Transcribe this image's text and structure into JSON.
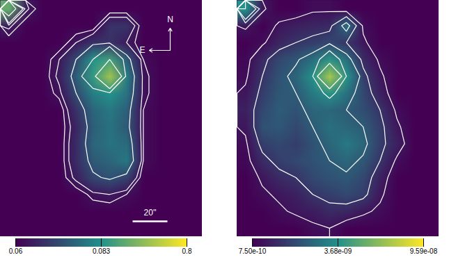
{
  "chart_data": [
    {
      "type": "heatmap",
      "tick_labels": false,
      "cells": [
        [
          0.3,
          0.065,
          0.06,
          0.06,
          0.06,
          0.06,
          0.06,
          0.06,
          0.06,
          0.06,
          0.06,
          0.06
        ],
        [
          0.065,
          0.06,
          0.06,
          0.06,
          0.06,
          0.06,
          0.068,
          0.068,
          0.06,
          0.06,
          0.06,
          0.06
        ],
        [
          0.06,
          0.06,
          0.06,
          0.06,
          0.064,
          0.068,
          0.068,
          0.064,
          0.06,
          0.06,
          0.06,
          0.06
        ],
        [
          0.06,
          0.06,
          0.06,
          0.064,
          0.072,
          0.1,
          0.2,
          0.075,
          0.062,
          0.06,
          0.06,
          0.06
        ],
        [
          0.06,
          0.06,
          0.06,
          0.065,
          0.075,
          0.15,
          0.5,
          0.08,
          0.063,
          0.06,
          0.06,
          0.06
        ],
        [
          0.06,
          0.06,
          0.06,
          0.063,
          0.072,
          0.08,
          0.09,
          0.078,
          0.063,
          0.06,
          0.06,
          0.06
        ],
        [
          0.06,
          0.06,
          0.06,
          0.06,
          0.068,
          0.076,
          0.079,
          0.075,
          0.062,
          0.06,
          0.06,
          0.06
        ],
        [
          0.06,
          0.06,
          0.06,
          0.06,
          0.066,
          0.075,
          0.078,
          0.074,
          0.062,
          0.06,
          0.06,
          0.06
        ],
        [
          0.06,
          0.06,
          0.06,
          0.06,
          0.067,
          0.076,
          0.078,
          0.077,
          0.062,
          0.06,
          0.06,
          0.06
        ],
        [
          0.06,
          0.06,
          0.06,
          0.06,
          0.067,
          0.074,
          0.076,
          0.079,
          0.062,
          0.06,
          0.06,
          0.06
        ],
        [
          0.06,
          0.06,
          0.06,
          0.06,
          0.065,
          0.071,
          0.073,
          0.07,
          0.06,
          0.06,
          0.06,
          0.06
        ],
        [
          0.06,
          0.06,
          0.06,
          0.06,
          0.06,
          0.063,
          0.064,
          0.062,
          0.06,
          0.06,
          0.06,
          0.06
        ],
        [
          0.06,
          0.06,
          0.06,
          0.06,
          0.06,
          0.06,
          0.06,
          0.06,
          0.06,
          0.06,
          0.06,
          0.06
        ],
        [
          0.06,
          0.06,
          0.06,
          0.06,
          0.06,
          0.06,
          0.06,
          0.06,
          0.06,
          0.06,
          0.06,
          0.06
        ]
      ],
      "contour_levels": [
        0.062,
        0.064,
        0.072,
        0.1,
        0.2
      ],
      "colorbar": {
        "range": [
          0.06,
          0.8
        ],
        "ticks": [
          0.06,
          0.083,
          0.8
        ]
      },
      "annotations": {
        "north": "N",
        "east": "E",
        "scale_bar": "20''"
      }
    },
    {
      "type": "heatmap",
      "tick_labels": false,
      "cells": [
        [
          5e-09,
          1.2e-09,
          7.5e-10,
          7.5e-10,
          1e-09,
          1e-09,
          7.5e-10,
          7.5e-10,
          7.5e-10,
          7.5e-10,
          7.5e-10,
          7.5e-10
        ],
        [
          1.2e-09,
          7.5e-10,
          1.2e-09,
          1.4e-09,
          1.5e-09,
          1.6e-09,
          3e-09,
          1e-09,
          7.5e-10,
          7.5e-10,
          7.5e-10,
          7.5e-10
        ],
        [
          7.5e-10,
          1e-09,
          1.5e-09,
          1.8e-09,
          2e-09,
          2.2e-09,
          1.8e-09,
          1.2e-09,
          7.5e-10,
          7.5e-10,
          7.5e-10,
          7.5e-10
        ],
        [
          9e-10,
          1.6e-09,
          2.2e-09,
          2.5e-09,
          3e-09,
          8e-09,
          3e-09,
          1.6e-09,
          1e-09,
          7.5e-10,
          7.5e-10,
          7.5e-10
        ],
        [
          1e-09,
          1.8e-09,
          2.4e-09,
          2.8e-09,
          5e-09,
          6e-08,
          5e-09,
          2e-09,
          1.2e-09,
          7.5e-10,
          7.5e-10,
          7.5e-10
        ],
        [
          1.2e-09,
          2e-09,
          2.5e-09,
          2.6e-09,
          3.2e-09,
          6e-09,
          3e-09,
          2.2e-09,
          1.4e-09,
          7.5e-10,
          7.5e-10,
          7.5e-10
        ],
        [
          1.4e-09,
          2.2e-09,
          2.6e-09,
          2.4e-09,
          2.8e-09,
          2.8e-09,
          2.6e-09,
          2.3e-09,
          1.8e-09,
          1e-09,
          7.5e-10,
          7.5e-10
        ],
        [
          1.2e-09,
          2.4e-09,
          2.5e-09,
          2.2e-09,
          2.6e-09,
          3e-09,
          2.8e-09,
          2.6e-09,
          2e-09,
          1.2e-09,
          7.5e-10,
          7.5e-10
        ],
        [
          1e-09,
          2e-09,
          2.2e-09,
          2e-09,
          2.4e-09,
          2.8e-09,
          3.2e-09,
          2.8e-09,
          2e-09,
          1.4e-09,
          7.5e-10,
          7.5e-10
        ],
        [
          9e-10,
          1.6e-09,
          2e-09,
          2.2e-09,
          2.4e-09,
          2.6e-09,
          2.8e-09,
          2.5e-09,
          1.8e-09,
          1e-09,
          7.5e-10,
          7.5e-10
        ],
        [
          7.5e-10,
          1.2e-09,
          1.6e-09,
          1.8e-09,
          2.2e-09,
          2.4e-09,
          2.5e-09,
          2.2e-09,
          1.4e-09,
          7.5e-10,
          7.5e-10,
          7.5e-10
        ],
        [
          7.5e-10,
          1e-09,
          1.2e-09,
          1.4e-09,
          1.8e-09,
          2e-09,
          2.2e-09,
          2e-09,
          1.2e-09,
          7.5e-10,
          7.5e-10,
          7.5e-10
        ],
        [
          7.5e-10,
          7.5e-10,
          1e-09,
          1.2e-09,
          1.3e-09,
          1.6e-09,
          1.5e-09,
          1.2e-09,
          1e-09,
          7.5e-10,
          7.5e-10,
          7.5e-10
        ],
        [
          7.5e-10,
          7.5e-10,
          7.5e-10,
          7.5e-10,
          1e-09,
          1.1e-09,
          7.5e-10,
          7.5e-10,
          7.5e-10,
          7.5e-10,
          7.5e-10,
          7.5e-10
        ]
      ],
      "contour_levels": [
        1.1e-09,
        1.8e-09,
        2.6e-09,
        5e-09,
        2e-08
      ],
      "colorbar": {
        "range": [
          7.5e-10,
          9.59e-08
        ],
        "ticks": [
          {
            "value": 7.5e-10,
            "label": "7.50e-10"
          },
          {
            "value": 3.68e-09,
            "label": "3.68e-09"
          },
          {
            "value": 9.59e-08,
            "label": "9.59e-08"
          }
        ]
      }
    }
  ]
}
